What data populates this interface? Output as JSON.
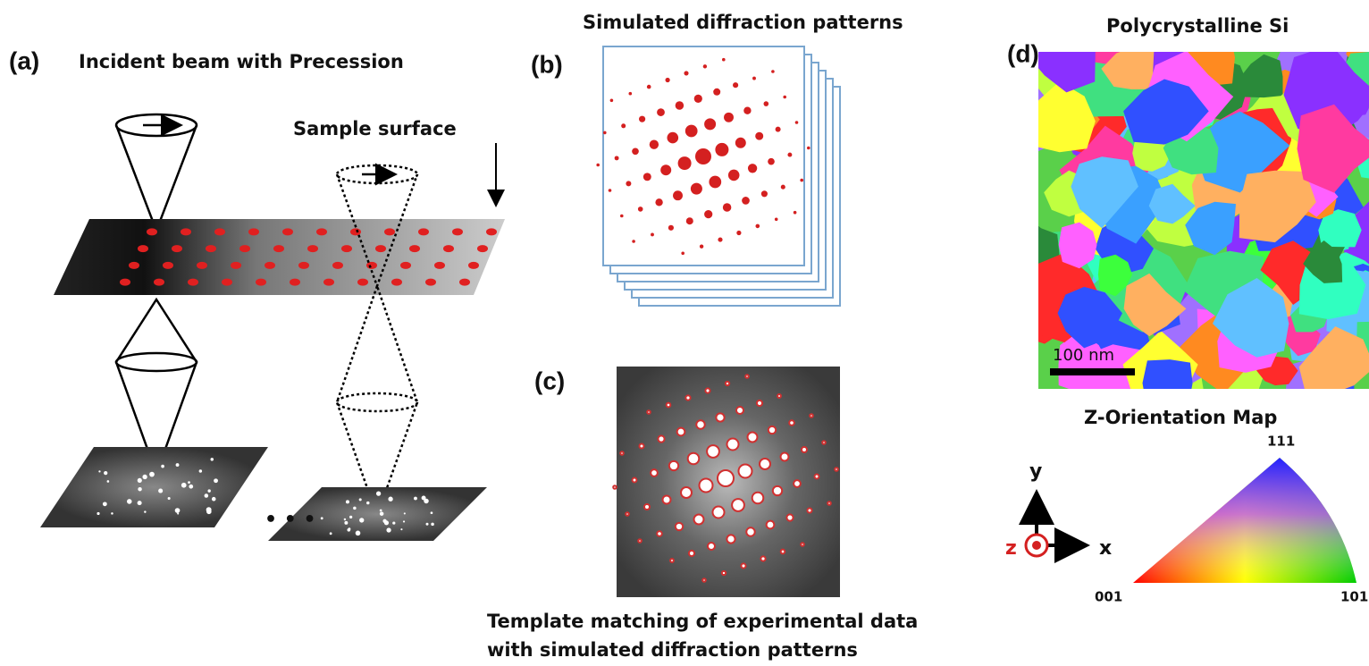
{
  "panel_a": {
    "label": "(a)",
    "title": "Incident beam with Precession",
    "annotation": "Sample surface",
    "ellipsis": "• • •"
  },
  "panel_b": {
    "label": "(b)",
    "title": "Simulated diffraction patterns"
  },
  "panel_c": {
    "label": "(c)",
    "caption_line1": "Template matching of experimental data",
    "caption_line2": "with simulated diffraction patterns"
  },
  "panel_d": {
    "label": "(d)",
    "title": "Polycrystalline Si",
    "scale_bar": "100 nm",
    "legend_title": "Z-Orientation Map",
    "corner_111": "111",
    "corner_001": "001",
    "corner_101": "101",
    "axis_y": "y",
    "axis_z": "z",
    "axis_x": "x"
  }
}
